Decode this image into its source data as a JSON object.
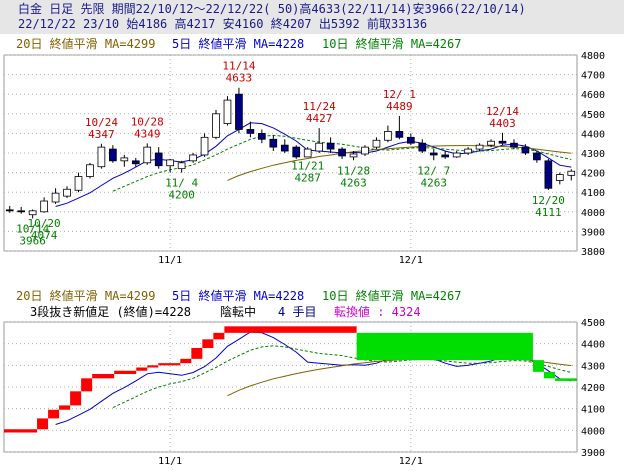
{
  "header": {
    "line1": "白金 日足 先限 期間22/10/12～22/12/22( 50)高4633(22/11/14)安3966(22/10/14)",
    "line2": "22/12/22 23/10 始4186 高4217 安4160 終4207 出5392 前取33136"
  },
  "top_panel": {
    "legend": [
      {
        "text": "20日 終値平滑 MA=4299",
        "color": "#806000"
      },
      {
        "text": "5日 終値平滑 MA=4228",
        "color": "#0000cc"
      },
      {
        "text": "10日 終値平滑 MA=4267",
        "color": "#008000"
      }
    ]
  },
  "bottom_panel": {
    "legend": [
      {
        "text": "20日 終値平滑 MA=4299",
        "color": "#806000"
      },
      {
        "text": "5日 終値平滑 MA=4228",
        "color": "#0000cc"
      },
      {
        "text": "10日 終値平滑 MA=4267",
        "color": "#008000"
      }
    ],
    "subtitle_a": "3段抜き新値足 (終値)=4228",
    "subtitle_b": "陰転中",
    "subtitle_c": "4 手目",
    "subtitle_d": "転換値 : 4324"
  },
  "chart_data": [
    {
      "type": "candlestick",
      "ylim": [
        3800,
        4800
      ],
      "yticks": [
        3800,
        3900,
        4000,
        4100,
        4200,
        4300,
        4400,
        4500,
        4600,
        4700,
        4800
      ],
      "xticks": [
        {
          "label": "11/1",
          "index": 14
        },
        {
          "label": "12/1",
          "index": 35
        }
      ],
      "up_color": "#ffffff",
      "down_color": "#000080",
      "candles": [
        {
          "o": 4010,
          "h": 4030,
          "l": 3995,
          "c": 4005
        },
        {
          "o": 4005,
          "h": 4025,
          "l": 3990,
          "c": 4000
        },
        {
          "o": 3985,
          "h": 4012,
          "l": 3966,
          "c": 4005
        },
        {
          "o": 4000,
          "h": 4074,
          "l": 3995,
          "c": 4055
        },
        {
          "o": 4050,
          "h": 4120,
          "l": 4040,
          "c": 4095
        },
        {
          "o": 4080,
          "h": 4130,
          "l": 4070,
          "c": 4115
        },
        {
          "o": 4110,
          "h": 4200,
          "l": 4100,
          "c": 4180
        },
        {
          "o": 4180,
          "h": 4250,
          "l": 4170,
          "c": 4240
        },
        {
          "o": 4230,
          "h": 4347,
          "l": 4220,
          "c": 4330
        },
        {
          "o": 4320,
          "h": 4340,
          "l": 4250,
          "c": 4260
        },
        {
          "o": 4260,
          "h": 4290,
          "l": 4230,
          "c": 4275
        },
        {
          "o": 4260,
          "h": 4275,
          "l": 4230,
          "c": 4245
        },
        {
          "o": 4250,
          "h": 4349,
          "l": 4240,
          "c": 4330
        },
        {
          "o": 4300,
          "h": 4330,
          "l": 4220,
          "c": 4235
        },
        {
          "o": 4235,
          "h": 4270,
          "l": 4200,
          "c": 4265
        },
        {
          "o": 4220,
          "h": 4260,
          "l": 4200,
          "c": 4250
        },
        {
          "o": 4260,
          "h": 4300,
          "l": 4250,
          "c": 4290
        },
        {
          "o": 4290,
          "h": 4400,
          "l": 4280,
          "c": 4380
        },
        {
          "o": 4380,
          "h": 4520,
          "l": 4370,
          "c": 4500
        },
        {
          "o": 4450,
          "h": 4590,
          "l": 4440,
          "c": 4570
        },
        {
          "o": 4600,
          "h": 4633,
          "l": 4400,
          "c": 4420
        },
        {
          "o": 4420,
          "h": 4460,
          "l": 4380,
          "c": 4400
        },
        {
          "o": 4400,
          "h": 4420,
          "l": 4350,
          "c": 4370
        },
        {
          "o": 4370,
          "h": 4390,
          "l": 4310,
          "c": 4330
        },
        {
          "o": 4340,
          "h": 4370,
          "l": 4300,
          "c": 4310
        },
        {
          "o": 4330,
          "h": 4340,
          "l": 4270,
          "c": 4280
        },
        {
          "o": 4280,
          "h": 4330,
          "l": 4287,
          "c": 4320
        },
        {
          "o": 4310,
          "h": 4427,
          "l": 4300,
          "c": 4350
        },
        {
          "o": 4350,
          "h": 4380,
          "l": 4300,
          "c": 4320
        },
        {
          "o": 4320,
          "h": 4330,
          "l": 4270,
          "c": 4285
        },
        {
          "o": 4280,
          "h": 4310,
          "l": 4263,
          "c": 4295
        },
        {
          "o": 4295,
          "h": 4340,
          "l": 4285,
          "c": 4330
        },
        {
          "o": 4330,
          "h": 4380,
          "l": 4320,
          "c": 4365
        },
        {
          "o": 4365,
          "h": 4440,
          "l": 4355,
          "c": 4410
        },
        {
          "o": 4410,
          "h": 4489,
          "l": 4370,
          "c": 4380
        },
        {
          "o": 4380,
          "h": 4400,
          "l": 4340,
          "c": 4350
        },
        {
          "o": 4350,
          "h": 4370,
          "l": 4300,
          "c": 4310
        },
        {
          "o": 4300,
          "h": 4320,
          "l": 4263,
          "c": 4290
        },
        {
          "o": 4290,
          "h": 4310,
          "l": 4270,
          "c": 4280
        },
        {
          "o": 4280,
          "h": 4310,
          "l": 4275,
          "c": 4300
        },
        {
          "o": 4300,
          "h": 4330,
          "l": 4290,
          "c": 4320
        },
        {
          "o": 4320,
          "h": 4350,
          "l": 4310,
          "c": 4340
        },
        {
          "o": 4340,
          "h": 4370,
          "l": 4330,
          "c": 4360
        },
        {
          "o": 4360,
          "h": 4403,
          "l": 4340,
          "c": 4350
        },
        {
          "o": 4350,
          "h": 4370,
          "l": 4320,
          "c": 4330
        },
        {
          "o": 4330,
          "h": 4345,
          "l": 4290,
          "c": 4300
        },
        {
          "o": 4300,
          "h": 4310,
          "l": 4250,
          "c": 4265
        },
        {
          "o": 4260,
          "h": 4270,
          "l": 4111,
          "c": 4120
        },
        {
          "o": 4160,
          "h": 4200,
          "l": 4140,
          "c": 4190
        },
        {
          "o": 4186,
          "h": 4217,
          "l": 4160,
          "c": 4207
        }
      ],
      "ma": [
        {
          "name": "5日",
          "color": "#0000cc",
          "values": [
            null,
            null,
            null,
            null,
            4027,
            4044,
            4070,
            4097,
            4134,
            4171,
            4197,
            4228,
            4261,
            4268,
            4261,
            4254,
            4267,
            4294,
            4334,
            4388,
            4420,
            4454,
            4450,
            4428,
            4396,
            4361,
            4315,
            4310,
            4305,
            4300,
            4303,
            4300,
            4310,
            4330,
            4350,
            4360,
            4350,
            4330,
            4310,
            4295,
            4300,
            4310,
            4320,
            4340,
            4345,
            4335,
            4310,
            4275,
            4238,
            4228
          ]
        },
        {
          "name": "10日",
          "color": "#008000",
          "values": [
            null,
            null,
            null,
            null,
            null,
            null,
            null,
            null,
            null,
            4105,
            4130,
            4155,
            4180,
            4200,
            4215,
            4225,
            4240,
            4265,
            4290,
            4320,
            4345,
            4370,
            4385,
            4390,
            4385,
            4375,
            4365,
            4355,
            4350,
            4345,
            4335,
            4325,
            4318,
            4315,
            4320,
            4325,
            4328,
            4325,
            4320,
            4315,
            4310,
            4310,
            4312,
            4318,
            4322,
            4320,
            4310,
            4295,
            4280,
            4267
          ]
        },
        {
          "name": "20日",
          "color": "#806000",
          "values": [
            null,
            null,
            null,
            null,
            null,
            null,
            null,
            null,
            null,
            null,
            null,
            null,
            null,
            null,
            null,
            null,
            null,
            null,
            null,
            4160,
            4185,
            4205,
            4222,
            4238,
            4250,
            4262,
            4272,
            4282,
            4290,
            4298,
            4306,
            4312,
            4318,
            4322,
            4326,
            4330,
            4333,
            4335,
            4337,
            4338,
            4338,
            4337,
            4335,
            4333,
            4330,
            4326,
            4320,
            4312,
            4305,
            4299
          ]
        }
      ],
      "annotations": [
        {
          "index": 2,
          "date": "10/14",
          "value": "3966",
          "pos": "low",
          "color": "#008000"
        },
        {
          "index": 3,
          "date": "10/20",
          "value": "4074",
          "pos": "low",
          "color": "#008000"
        },
        {
          "index": 8,
          "date": "10/24",
          "value": "4347",
          "pos": "high",
          "color": "#cc0000"
        },
        {
          "index": 12,
          "date": "10/28",
          "value": "4349",
          "pos": "high",
          "color": "#cc0000"
        },
        {
          "index": 15,
          "date": "11/ 4",
          "value": "4200",
          "pos": "low",
          "color": "#008000"
        },
        {
          "index": 20,
          "date": "11/14",
          "value": "4633",
          "pos": "high",
          "color": "#cc0000"
        },
        {
          "index": 26,
          "date": "11/21",
          "value": "4287",
          "pos": "low",
          "color": "#008000"
        },
        {
          "index": 27,
          "date": "11/24",
          "value": "4427",
          "pos": "high",
          "color": "#cc0000"
        },
        {
          "index": 30,
          "date": "11/28",
          "value": "4263",
          "pos": "low",
          "color": "#008000"
        },
        {
          "index": 34,
          "date": "12/ 1",
          "value": "4489",
          "pos": "high",
          "color": "#cc0000"
        },
        {
          "index": 37,
          "date": "12/ 7",
          "value": "4263",
          "pos": "low",
          "color": "#008000"
        },
        {
          "index": 43,
          "date": "12/14",
          "value": "4403",
          "pos": "high",
          "color": "#cc0000"
        },
        {
          "index": 47,
          "date": "12/20",
          "value": "4111",
          "pos": "low",
          "color": "#008000"
        }
      ]
    },
    {
      "type": "three-line-break",
      "ylim": [
        3900,
        4500
      ],
      "yticks": [
        3900,
        4000,
        4100,
        4200,
        4300,
        4400,
        4500
      ],
      "xticks": [
        {
          "label": "11/1",
          "index": 14
        },
        {
          "label": "12/1",
          "index": 35
        }
      ],
      "bricks": [
        {
          "from": 3990,
          "to": 4005,
          "dir": "up",
          "start": 0,
          "end": 2
        },
        {
          "from": 4005,
          "to": 4055,
          "dir": "up",
          "start": 3,
          "end": 3
        },
        {
          "from": 4055,
          "to": 4095,
          "dir": "up",
          "start": 4,
          "end": 4
        },
        {
          "from": 4095,
          "to": 4115,
          "dir": "up",
          "start": 5,
          "end": 5
        },
        {
          "from": 4115,
          "to": 4180,
          "dir": "up",
          "start": 6,
          "end": 6
        },
        {
          "from": 4180,
          "to": 4240,
          "dir": "up",
          "start": 7,
          "end": 7
        },
        {
          "from": 4240,
          "to": 4260,
          "dir": "up",
          "start": 8,
          "end": 9
        },
        {
          "from": 4260,
          "to": 4275,
          "dir": "up",
          "start": 10,
          "end": 11
        },
        {
          "from": 4275,
          "to": 4290,
          "dir": "up",
          "start": 12,
          "end": 12
        },
        {
          "from": 4290,
          "to": 4300,
          "dir": "up",
          "start": 13,
          "end": 13
        },
        {
          "from": 4300,
          "to": 4310,
          "dir": "up",
          "start": 14,
          "end": 15
        },
        {
          "from": 4310,
          "to": 4330,
          "dir": "up",
          "start": 16,
          "end": 16
        },
        {
          "from": 4330,
          "to": 4380,
          "dir": "up",
          "start": 17,
          "end": 17
        },
        {
          "from": 4380,
          "to": 4420,
          "dir": "up",
          "start": 18,
          "end": 18
        },
        {
          "from": 4420,
          "to": 4450,
          "dir": "up",
          "start": 19,
          "end": 19
        },
        {
          "from": 4450,
          "to": 4480,
          "dir": "up",
          "start": 20,
          "end": 31
        },
        {
          "from": 4450,
          "to": 4324,
          "dir": "down",
          "start": 32,
          "end": 47
        },
        {
          "from": 4324,
          "to": 4270,
          "dir": "down",
          "start": 48,
          "end": 48
        },
        {
          "from": 4270,
          "to": 4240,
          "dir": "down",
          "start": 49,
          "end": 49
        },
        {
          "from": 4240,
          "to": 4228,
          "dir": "down",
          "start": 50,
          "end": 51
        }
      ],
      "up_color": "#ff0000",
      "down_color": "#00dd00"
    }
  ]
}
